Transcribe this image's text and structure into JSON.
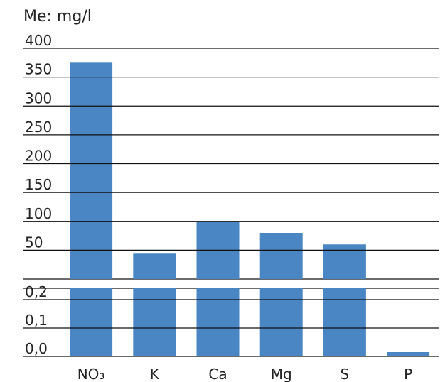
{
  "chart_data": {
    "type": "bar",
    "title": "Me: mg/l",
    "categories": [
      "NO₃",
      "K",
      "Ca",
      "Mg",
      "S",
      "P"
    ],
    "values": [
      375,
      44,
      100,
      80,
      60,
      0.015
    ],
    "color": "#4a86c3",
    "ylim": [
      0,
      400
    ],
    "yticks": [
      50,
      100,
      150,
      200,
      250,
      300,
      350,
      400
    ],
    "ylim_lower": [
      0,
      0.24
    ],
    "yticks_lower": [
      {
        "value": 0,
        "label": "0,0"
      },
      {
        "value": 0.1,
        "label": "0,1"
      },
      {
        "value": 0.2,
        "label": "0,2"
      }
    ],
    "grid": true
  }
}
